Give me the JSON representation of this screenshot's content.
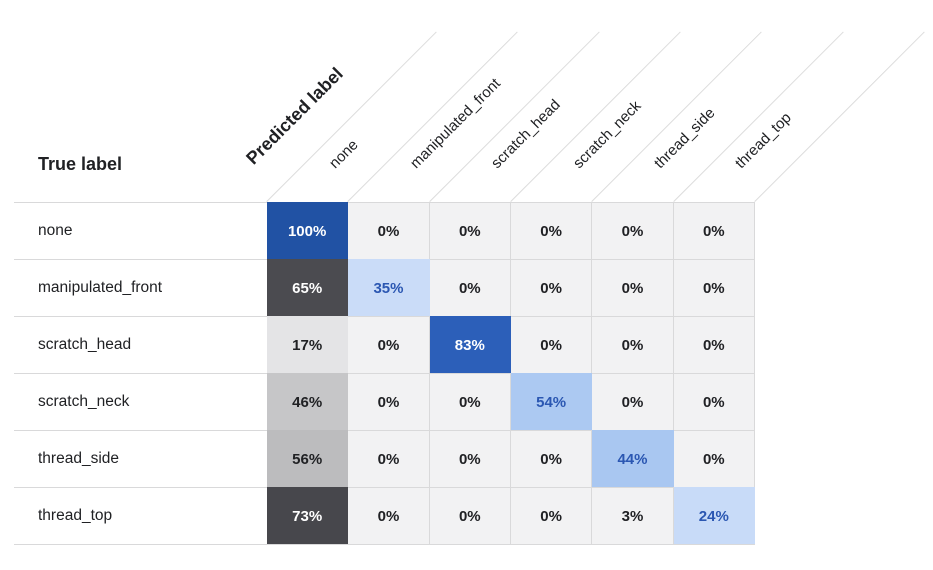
{
  "title": {
    "predicted_label": "Predicted label",
    "true_label": "True label"
  },
  "colors": {
    "grid_line": "#d9d9da",
    "diagonal_separator": "#dcdcdc",
    "default_cell_bg": "#f2f2f3",
    "default_cell_text": "#202124",
    "white_text": "#ffffff",
    "blue_text": "#2b57b2",
    "diagonal_blue_strong": "#2152a4",
    "first_column_gray_strong": "#4b4b50"
  },
  "matrix": {
    "row_labels": [
      "none",
      "manipulated_front",
      "scratch_head",
      "scratch_neck",
      "thread_side",
      "thread_top"
    ],
    "column_labels": [
      "none",
      "manipulated_front",
      "scratch_head",
      "scratch_neck",
      "thread_side",
      "thread_top"
    ],
    "default_cell": {
      "bg": "#f2f2f3",
      "fg": "#202124"
    },
    "cells": [
      [
        {
          "text": "100%",
          "bg": "#2152a4",
          "fg": "#ffffff"
        },
        {
          "text": "0%"
        },
        {
          "text": "0%"
        },
        {
          "text": "0%"
        },
        {
          "text": "0%"
        },
        {
          "text": "0%"
        }
      ],
      [
        {
          "text": "65%",
          "bg": "#4b4b50",
          "fg": "#ffffff"
        },
        {
          "text": "35%",
          "bg": "#cadcf8",
          "fg": "#2b57b2"
        },
        {
          "text": "0%"
        },
        {
          "text": "0%"
        },
        {
          "text": "0%"
        },
        {
          "text": "0%"
        }
      ],
      [
        {
          "text": "17%",
          "bg": "#e4e4e6"
        },
        {
          "text": "0%"
        },
        {
          "text": "83%",
          "bg": "#2c5fb9",
          "fg": "#ffffff"
        },
        {
          "text": "0%"
        },
        {
          "text": "0%"
        },
        {
          "text": "0%"
        }
      ],
      [
        {
          "text": "46%",
          "bg": "#c6c6c8"
        },
        {
          "text": "0%"
        },
        {
          "text": "0%"
        },
        {
          "text": "54%",
          "bg": "#acc9f2",
          "fg": "#2b57b2"
        },
        {
          "text": "0%"
        },
        {
          "text": "0%"
        }
      ],
      [
        {
          "text": "56%",
          "bg": "#bcbcbe"
        },
        {
          "text": "0%"
        },
        {
          "text": "0%"
        },
        {
          "text": "0%"
        },
        {
          "text": "44%",
          "bg": "#a9c7f1",
          "fg": "#2b57b2"
        },
        {
          "text": "0%"
        }
      ],
      [
        {
          "text": "73%",
          "bg": "#47474c",
          "fg": "#ffffff"
        },
        {
          "text": "0%"
        },
        {
          "text": "0%"
        },
        {
          "text": "0%"
        },
        {
          "text": "3%"
        },
        {
          "text": "24%",
          "bg": "#c8dbf8",
          "fg": "#2b57b2"
        }
      ]
    ]
  },
  "chart_data": {
    "type": "heatmap",
    "title": "",
    "xlabel": "Predicted label",
    "ylabel": "True label",
    "columns": [
      "none",
      "manipulated_front",
      "scratch_head",
      "scratch_neck",
      "thread_side",
      "thread_top"
    ],
    "rows": [
      "none",
      "manipulated_front",
      "scratch_head",
      "scratch_neck",
      "thread_side",
      "thread_top"
    ],
    "values_percent": [
      [
        100,
        0,
        0,
        0,
        0,
        0
      ],
      [
        65,
        35,
        0,
        0,
        0,
        0
      ],
      [
        17,
        0,
        83,
        0,
        0,
        0
      ],
      [
        46,
        0,
        0,
        54,
        0,
        0
      ],
      [
        56,
        0,
        0,
        0,
        44,
        0
      ],
      [
        73,
        0,
        0,
        0,
        3,
        24
      ]
    ],
    "legend_position": "none",
    "grid": true,
    "color_encoding": "first column grayscale by value; diagonal cells blue by value; off-diagonal light gray"
  }
}
